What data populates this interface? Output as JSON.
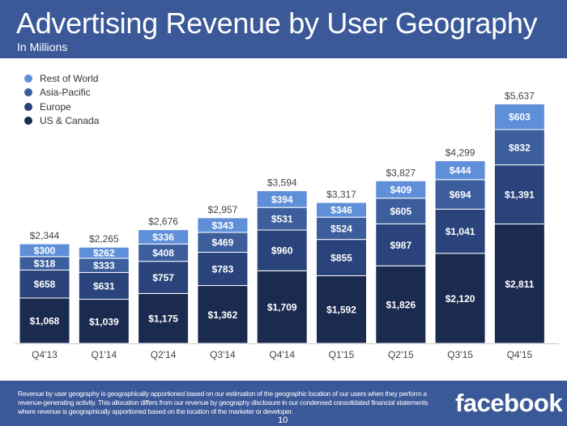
{
  "header": {
    "title": "Advertising Revenue by User Geography",
    "subtitle": "In Millions"
  },
  "legend": [
    {
      "label": "Rest of World",
      "color": "#5f8fd9"
    },
    {
      "label": "Asia-Pacific",
      "color": "#3d5e9c"
    },
    {
      "label": "Europe",
      "color": "#2a437a"
    },
    {
      "label": "US & Canada",
      "color": "#1b2a4f"
    }
  ],
  "chart_data": {
    "type": "bar",
    "stacked": true,
    "categories": [
      "Q4'13",
      "Q1'14",
      "Q2'14",
      "Q3'14",
      "Q4'14",
      "Q1'15",
      "Q2'15",
      "Q3'15",
      "Q4'15"
    ],
    "series": [
      {
        "name": "US & Canada",
        "color": "#1b2a4f",
        "values": [
          1068,
          1039,
          1175,
          1362,
          1709,
          1592,
          1826,
          2120,
          2811
        ],
        "labels": [
          "$1,068",
          "$1,039",
          "$1,175",
          "$1,362",
          "$1,709",
          "$1,592",
          "$1,826",
          "$2,120",
          "$2,811"
        ]
      },
      {
        "name": "Europe",
        "color": "#2a437a",
        "values": [
          658,
          631,
          757,
          783,
          960,
          855,
          987,
          1041,
          1391
        ],
        "labels": [
          "$658",
          "$631",
          "$757",
          "$783",
          "$960",
          "$855",
          "$987",
          "$1,041",
          "$1,391"
        ]
      },
      {
        "name": "Asia-Pacific",
        "color": "#3d5e9c",
        "values": [
          318,
          333,
          408,
          469,
          531,
          524,
          605,
          694,
          832
        ],
        "labels": [
          "$318",
          "$333",
          "$408",
          "$469",
          "$531",
          "$524",
          "$605",
          "$694",
          "$832"
        ]
      },
      {
        "name": "Rest of World",
        "color": "#5f8fd9",
        "values": [
          300,
          262,
          336,
          343,
          394,
          346,
          409,
          444,
          603
        ],
        "labels": [
          "$300",
          "$262",
          "$336",
          "$343",
          "$394",
          "$346",
          "$409",
          "$444",
          "$603"
        ]
      }
    ],
    "totals": [
      2344,
      2265,
      2676,
      2957,
      3594,
      3317,
      3827,
      4299,
      5637
    ],
    "total_labels": [
      "$2,344",
      "$2,265",
      "$2,676",
      "$2,957",
      "$3,594",
      "$3,317",
      "$3,827",
      "$4,299",
      "$5,637"
    ],
    "ylim": [
      0,
      5900
    ],
    "grid": false,
    "legend_position": "top-left"
  },
  "footer": {
    "note": "Revenue by user geography is geographically apportioned based on our estimation of the geographic location of our users when they perform a revenue-generating activity. This allocation differs from our revenue by geography disclosure in our condensed consolidated financial statements where revenue is geographically apportioned based on the location of the marketer or developer.",
    "logo_text": "facebook",
    "page_number": "10"
  }
}
